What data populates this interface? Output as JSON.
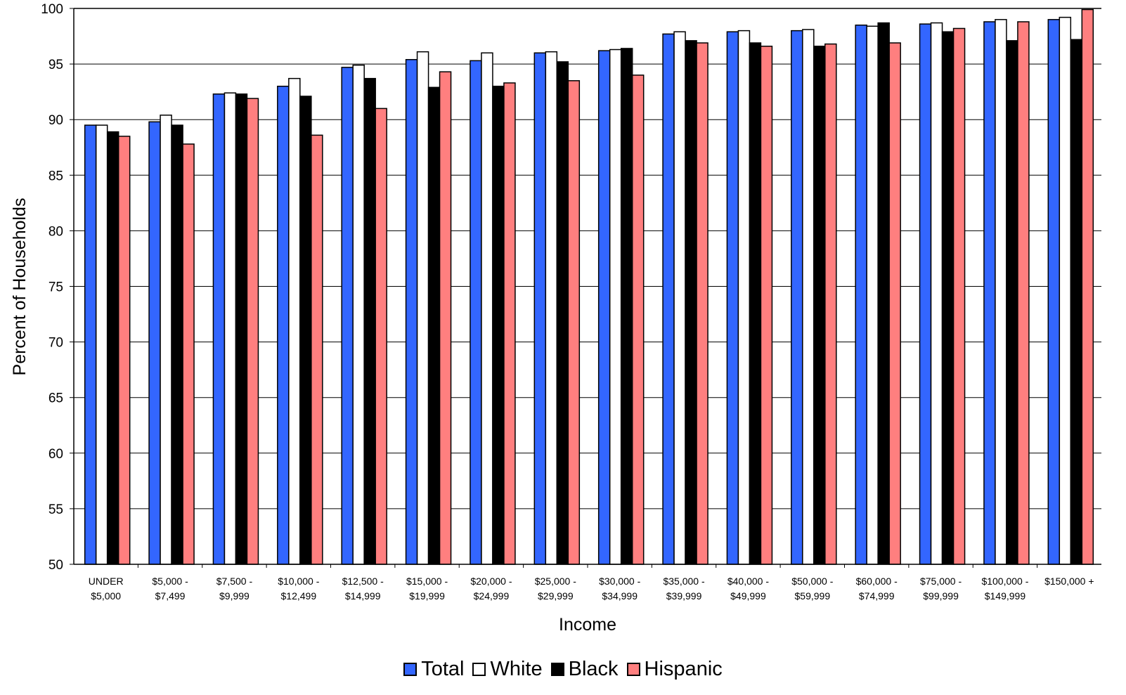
{
  "chart_data": {
    "type": "bar",
    "title": "",
    "xlabel": "Income",
    "ylabel": "Percent of Households",
    "ylim": [
      50,
      100
    ],
    "yticks": [
      50,
      55,
      60,
      65,
      70,
      75,
      80,
      85,
      90,
      95,
      100
    ],
    "grid": "horizontal",
    "legend_position": "bottom",
    "categories": [
      [
        "UNDER",
        "$5,000"
      ],
      [
        "$5,000 -",
        "$7,499"
      ],
      [
        "$7,500 -",
        "$9,999"
      ],
      [
        "$10,000 -",
        "$12,499"
      ],
      [
        "$12,500 -",
        "$14,999"
      ],
      [
        "$15,000 -",
        "$19,999"
      ],
      [
        "$20,000 -",
        "$24,999"
      ],
      [
        "$25,000 -",
        "$29,999"
      ],
      [
        "$30,000 -",
        "$34,999"
      ],
      [
        "$35,000 -",
        "$39,999"
      ],
      [
        "$40,000 -",
        "$49,999"
      ],
      [
        "$50,000 -",
        "$59,999"
      ],
      [
        "$60,000 -",
        "$74,999"
      ],
      [
        "$75,000 -",
        "$99,999"
      ],
      [
        "$100,000 -",
        "$149,999"
      ],
      [
        "$150,000 +",
        ""
      ]
    ],
    "series": [
      {
        "name": "Total",
        "color": "#3366ff",
        "values": [
          89.5,
          89.8,
          92.3,
          93.0,
          94.7,
          95.4,
          95.3,
          96.0,
          96.2,
          97.7,
          97.9,
          98.0,
          98.5,
          98.6,
          98.8,
          99.0
        ]
      },
      {
        "name": "White",
        "color": "#ffffff",
        "values": [
          89.5,
          90.4,
          92.4,
          93.7,
          94.9,
          96.1,
          96.0,
          96.1,
          96.3,
          97.9,
          98.0,
          98.1,
          98.4,
          98.7,
          99.0,
          99.2
        ]
      },
      {
        "name": "Black",
        "color": "#000000",
        "values": [
          88.9,
          89.5,
          92.3,
          92.1,
          93.7,
          92.9,
          93.0,
          95.2,
          96.4,
          97.1,
          96.9,
          96.6,
          98.7,
          97.9,
          97.1,
          97.2
        ]
      },
      {
        "name": "Hispanic",
        "color": "#ff7f7f",
        "values": [
          88.5,
          87.8,
          91.9,
          88.6,
          91.0,
          94.3,
          93.3,
          93.5,
          94.0,
          96.9,
          96.6,
          96.8,
          96.9,
          98.2,
          98.8,
          99.9
        ]
      }
    ]
  }
}
